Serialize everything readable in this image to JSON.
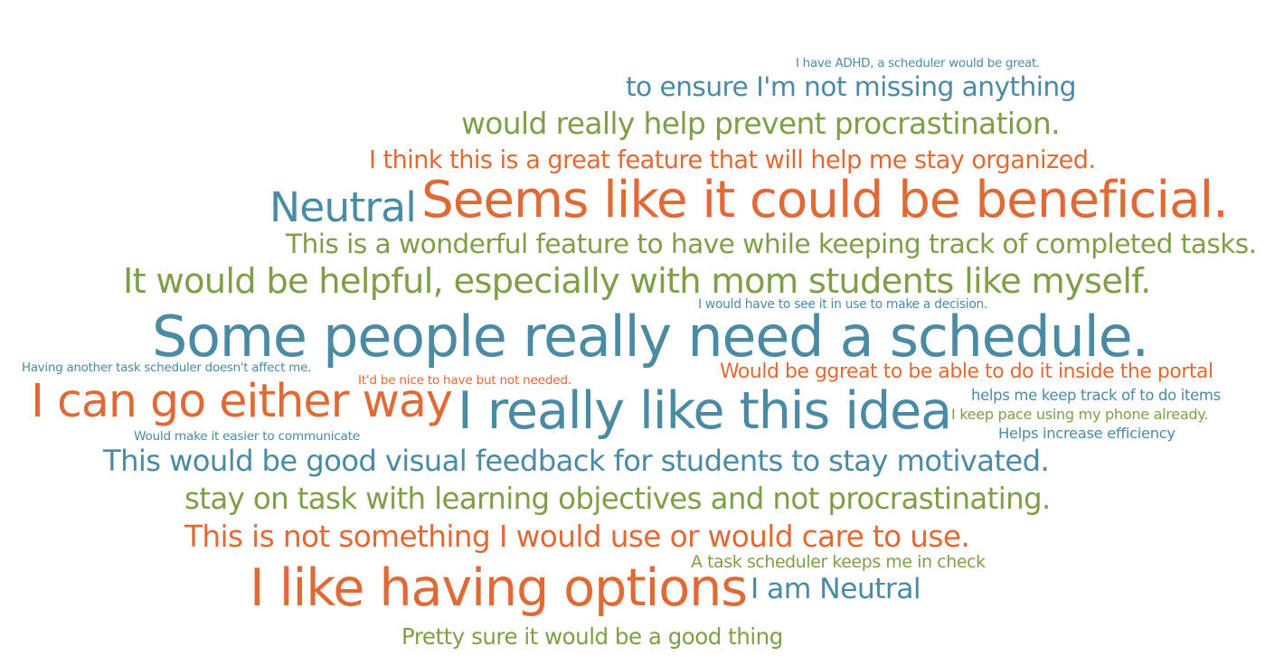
{
  "palette": {
    "blue": "#4a8ba3",
    "green": "#7f9e48",
    "orange": "#e06a35"
  },
  "words": [
    {
      "text": "I have ADHD, a scheduler would be great.",
      "color": "blue"
    },
    {
      "text": "to ensure I'm not missing anything",
      "color": "blue"
    },
    {
      "text": "would really help prevent procrastination.",
      "color": "green"
    },
    {
      "text": "I think this is a great feature that will help me stay organized.",
      "color": "orange"
    },
    {
      "text": "Neutral",
      "color": "blue"
    },
    {
      "text": "Seems like it could be beneficial.",
      "color": "orange"
    },
    {
      "text": "This is a wonderful feature to have while keeping track of completed tasks.",
      "color": "green"
    },
    {
      "text": "It would be helpful, especially with mom students like myself.",
      "color": "green"
    },
    {
      "text": "I would have to see it in use to make a decision.",
      "color": "blue"
    },
    {
      "text": "Some people really need a schedule.",
      "color": "blue"
    },
    {
      "text": "Having another task scheduler doesn't affect me.",
      "color": "blue"
    },
    {
      "text": "It'd be nice to have but not needed.",
      "color": "orange"
    },
    {
      "text": "Would be ggreat to be able to do it inside the portal",
      "color": "orange"
    },
    {
      "text": "I can go either way",
      "color": "orange"
    },
    {
      "text": "I really like this idea",
      "color": "blue"
    },
    {
      "text": "helps me keep track of to do items",
      "color": "blue"
    },
    {
      "text": "I keep pace using my phone already.",
      "color": "green"
    },
    {
      "text": "Helps increase efficiency",
      "color": "blue"
    },
    {
      "text": "Would make it easier to communicate",
      "color": "blue"
    },
    {
      "text": "This would be good visual feedback for students to stay motivated.",
      "color": "blue"
    },
    {
      "text": "stay on task with learning objectives and not procrastinating.",
      "color": "green"
    },
    {
      "text": "This is not something I would use or would care to use.",
      "color": "orange"
    },
    {
      "text": "A task scheduler keeps me in check",
      "color": "green"
    },
    {
      "text": "I like having options",
      "color": "orange"
    },
    {
      "text": "I am Neutral",
      "color": "blue"
    },
    {
      "text": "Pretty sure it would be a good thing",
      "color": "green"
    }
  ]
}
